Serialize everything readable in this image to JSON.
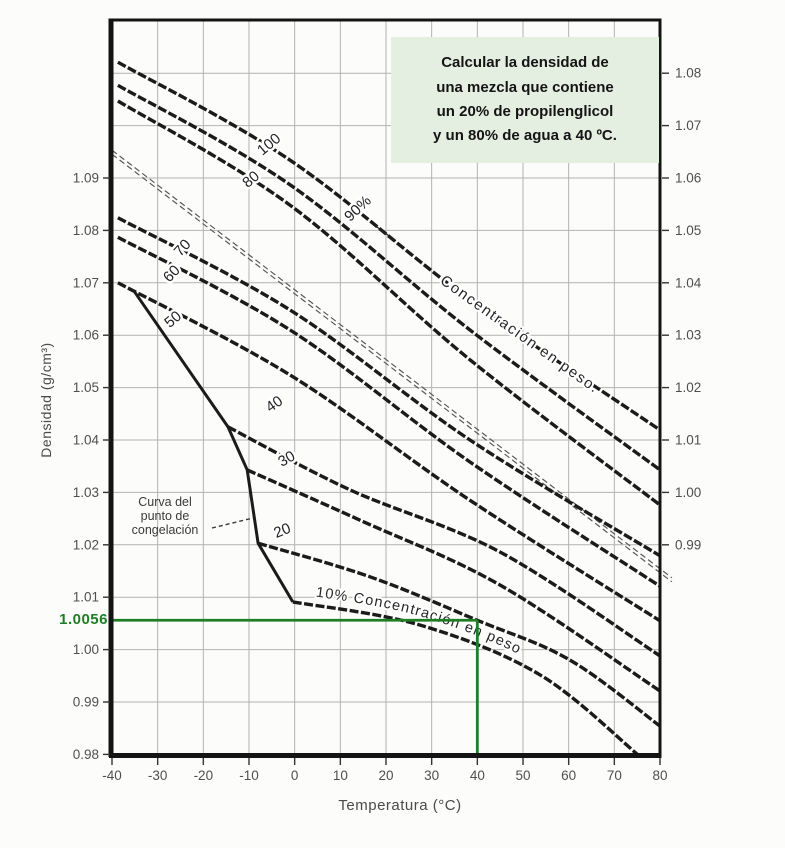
{
  "title_box": {
    "bg_color": "#e4efe2",
    "lines": [
      "Calcular la densidad de",
      "una mezcla que contiene",
      "un 20% de propilenglicol",
      "y un 80% de agua a 40 ºC."
    ]
  },
  "axes": {
    "left": {
      "label": "Densidad (g/cm³)",
      "tick_labels": [
        "1.09",
        "1.08",
        "1.07",
        "1.06",
        "1.05",
        "1.04",
        "1.03",
        "1.02",
        "1.01",
        "1.00",
        "0.99",
        "0.98"
      ]
    },
    "right": {
      "tick_labels": [
        "1.08",
        "1.07",
        "1.06",
        "1.05",
        "1.04",
        "1.03",
        "1.02",
        "1.01",
        "1.00",
        "0.99"
      ],
      "offset_from_left_scale": -0.03
    },
    "bottom": {
      "label": "Temperatura (°C)",
      "tick_labels": [
        "-40",
        "-30",
        "-20",
        "-10",
        "0",
        "10",
        "20",
        "30",
        "40",
        "50",
        "60",
        "70",
        "80"
      ]
    }
  },
  "annotation": {
    "density_label": "1.0056",
    "temperature_c": 40,
    "density_value": 1.0056,
    "color": "#1e7e24"
  },
  "chart_data": {
    "type": "line",
    "title": "",
    "xlabel": "Temperatura (°C)",
    "ylabel": "Densidad (g/cm³)",
    "x_range": [
      -40,
      80
    ],
    "y_range_left_scale": [
      0.98,
      1.12
    ],
    "grid": "on",
    "group_label": "Concentración en peso.",
    "series_10_label": "10% Concentración en peso",
    "freezing_label_lines": [
      "Curva del",
      "punto de",
      "congelación"
    ],
    "series": [
      {
        "name": "100",
        "label": "100",
        "points": [
          [
            -38.7,
            1.1121
          ],
          [
            -1,
            1.0934
          ],
          [
            38.4,
            1.0667
          ],
          [
            80,
            1.0419
          ]
        ]
      },
      {
        "name": "90",
        "label": "90%",
        "points": [
          [
            -38.7,
            1.1077
          ],
          [
            -1,
            1.0887
          ],
          [
            38.4,
            1.061
          ],
          [
            80,
            1.0343
          ]
        ]
      },
      {
        "name": "80",
        "label": "80",
        "points": [
          [
            -38.7,
            1.1047
          ],
          [
            -1,
            1.0848
          ],
          [
            38.4,
            1.0553
          ],
          [
            80,
            1.0276
          ]
        ]
      },
      {
        "name": "70",
        "label": "70",
        "points": [
          [
            -38.7,
            1.0824
          ],
          [
            -1,
            1.0648
          ],
          [
            38.4,
            1.04
          ],
          [
            80,
            1.0179
          ]
        ]
      },
      {
        "name": "60",
        "label": "60",
        "points": [
          [
            -38.7,
            1.0787
          ],
          [
            -1,
            1.061
          ],
          [
            38.4,
            1.0358
          ],
          [
            80,
            1.0121
          ]
        ]
      },
      {
        "name": "50",
        "label": "50",
        "points": [
          [
            -38.7,
            1.07
          ],
          [
            -1,
            1.0524
          ],
          [
            38.4,
            1.0285
          ],
          [
            80,
            1.0055
          ]
        ]
      },
      {
        "name": "40",
        "label": "40",
        "points": [
          [
            -14.6,
            1.0425
          ],
          [
            12.1,
            1.0305
          ],
          [
            45,
            1.0186
          ],
          [
            80,
            0.9988
          ]
        ]
      },
      {
        "name": "30",
        "label": "30",
        "points": [
          [
            -10.4,
            1.0343
          ],
          [
            14.3,
            1.0247
          ],
          [
            45,
            1.0123
          ],
          [
            80,
            0.9921
          ]
        ]
      },
      {
        "name": "20",
        "label": "20",
        "points": [
          [
            -8,
            1.0203
          ],
          [
            16.5,
            1.0139
          ],
          [
            40,
            1.0056
          ],
          [
            60.3,
            0.998
          ],
          [
            80,
            0.9854
          ]
        ]
      },
      {
        "name": "10",
        "label": "10",
        "points": [
          [
            -0.4,
            1.0091
          ],
          [
            27.4,
            1.0047
          ],
          [
            53.7,
            0.9952
          ],
          [
            75.2,
            0.9799
          ]
        ]
      }
    ],
    "freezing_curve": {
      "points": [
        [
          -35,
          1.0682
        ],
        [
          -14.6,
          1.0425
        ],
        [
          -10.4,
          1.0343
        ],
        [
          -8,
          1.0203
        ],
        [
          -0.4,
          1.0091
        ]
      ]
    },
    "reference_line": {
      "style": "thin-double-dashed",
      "points": [
        [
          -40,
          1.0953
        ],
        [
          82.6,
          1.0137
        ]
      ]
    }
  }
}
